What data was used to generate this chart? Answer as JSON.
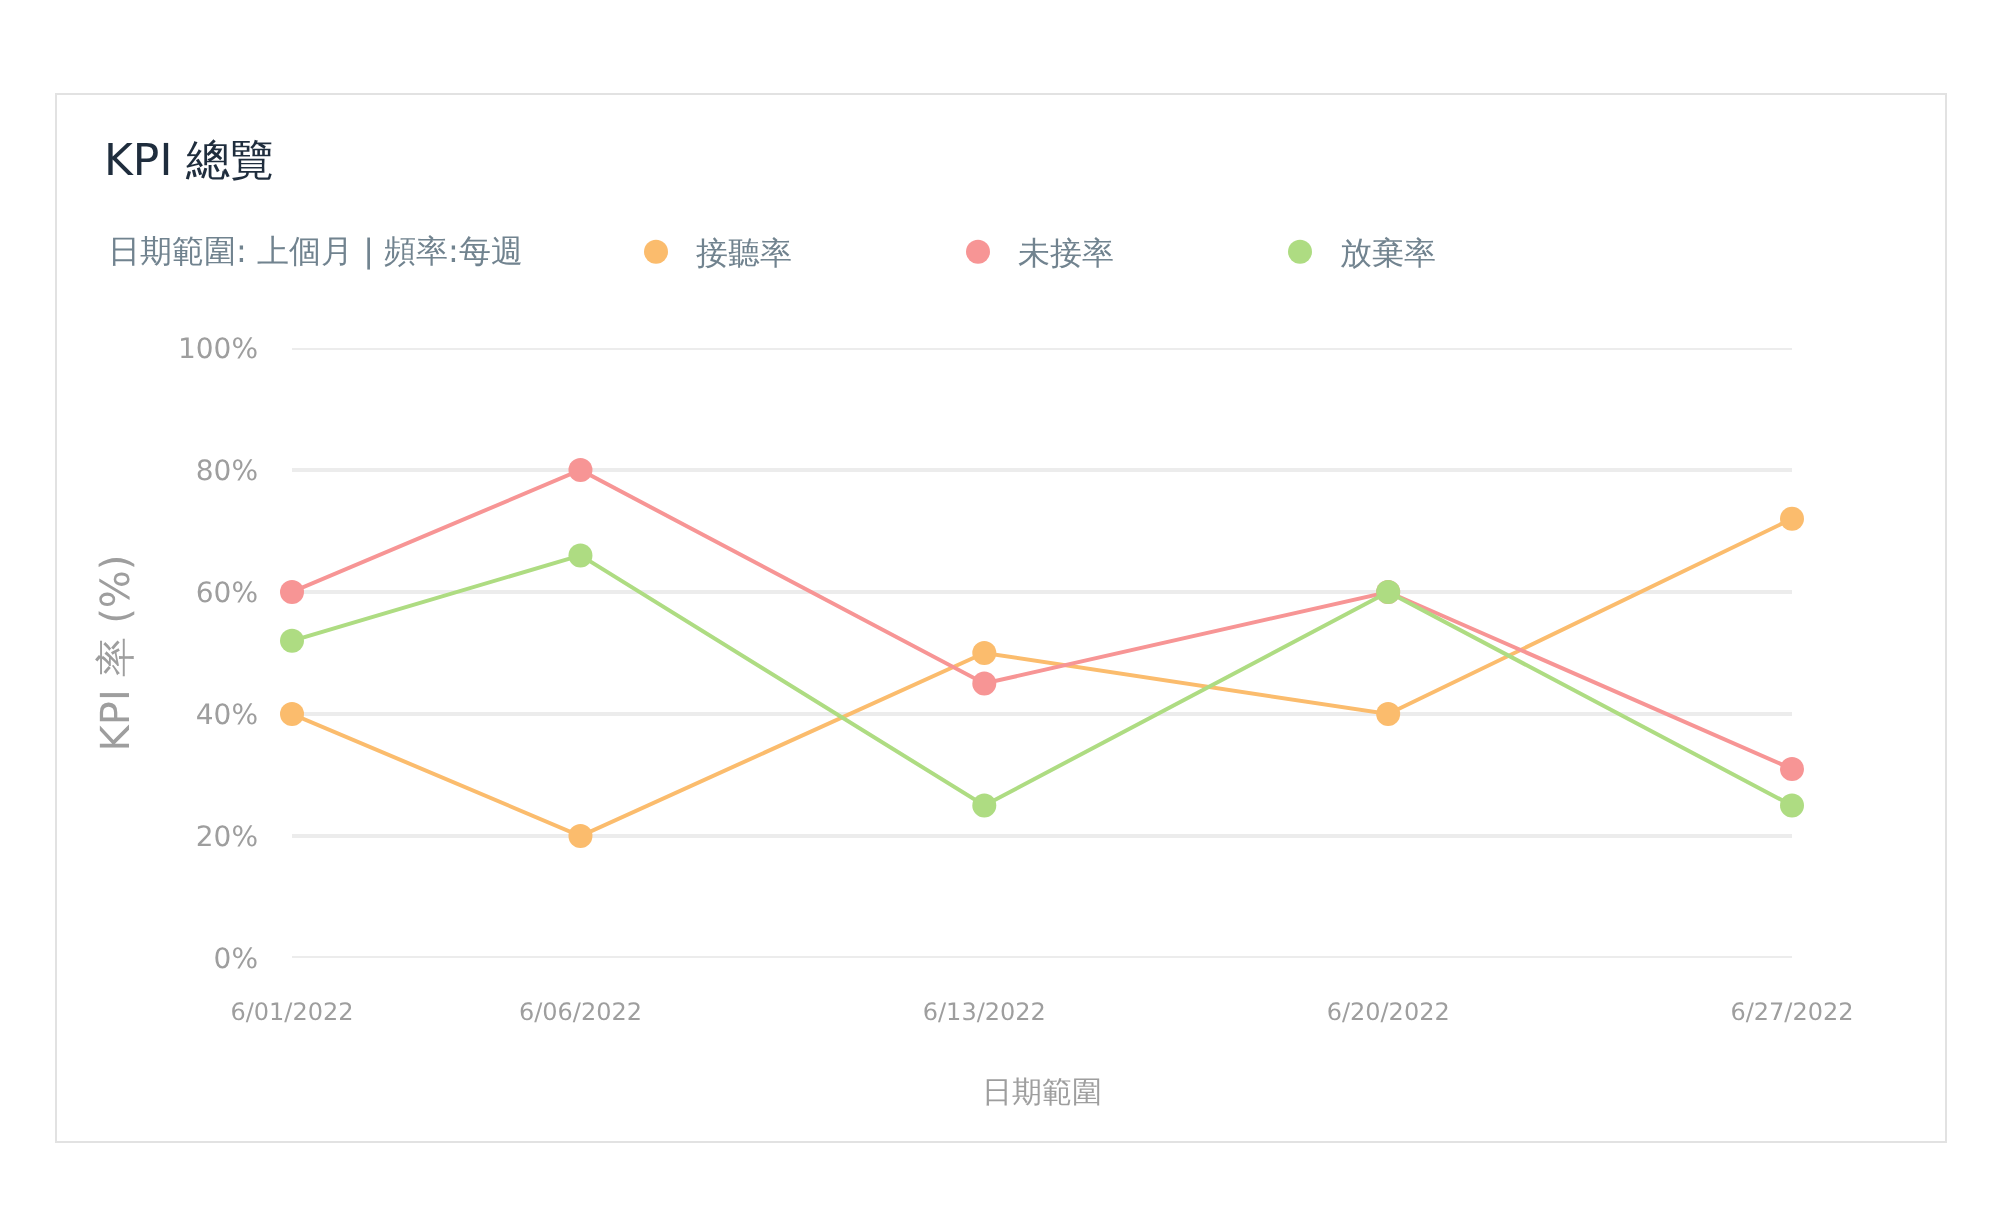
{
  "chart_data": {
    "type": "line",
    "title": "KPI 總覽",
    "subtitle": "日期範圍: 上個月 | 頻率:每週",
    "xlabel": "日期範圍",
    "ylabel": "KPI 率 (%)",
    "x": [
      "2022-06-01",
      "2022-06-06",
      "2022-06-13",
      "2022-06-20",
      "2022-06-27"
    ],
    "series": [
      {
        "name": "接聽率",
        "color": "#fbbc6d",
        "values": [
          40,
          20,
          50,
          40,
          72
        ]
      },
      {
        "name": "未接率",
        "color": "#f79595",
        "values": [
          60,
          80,
          45,
          60,
          31
        ]
      },
      {
        "name": "放棄率",
        "color": "#aedc82",
        "values": [
          52,
          66,
          25,
          60,
          25
        ]
      }
    ],
    "xlim": [
      "2022-06-01",
      "2022-06-27"
    ],
    "xticks": [
      {
        "value": "2022-06-01",
        "label": "6/01/2022"
      },
      {
        "value": "2022-06-06",
        "label": "6/06/2022"
      },
      {
        "value": "2022-06-13",
        "label": "6/13/2022"
      },
      {
        "value": "2022-06-20",
        "label": "6/20/2022"
      },
      {
        "value": "2022-06-27",
        "label": "6/27/2022"
      }
    ],
    "ylim": [
      0,
      100
    ],
    "yticks": [
      {
        "value": 0,
        "label": "0%"
      },
      {
        "value": 20,
        "label": "20%"
      },
      {
        "value": 40,
        "label": "40%"
      },
      {
        "value": 60,
        "label": "60%"
      },
      {
        "value": 80,
        "label": "80%"
      },
      {
        "value": 100,
        "label": "100%"
      }
    ],
    "grid": "y",
    "legend": "top",
    "marker": "circle",
    "line_style": "solid"
  }
}
